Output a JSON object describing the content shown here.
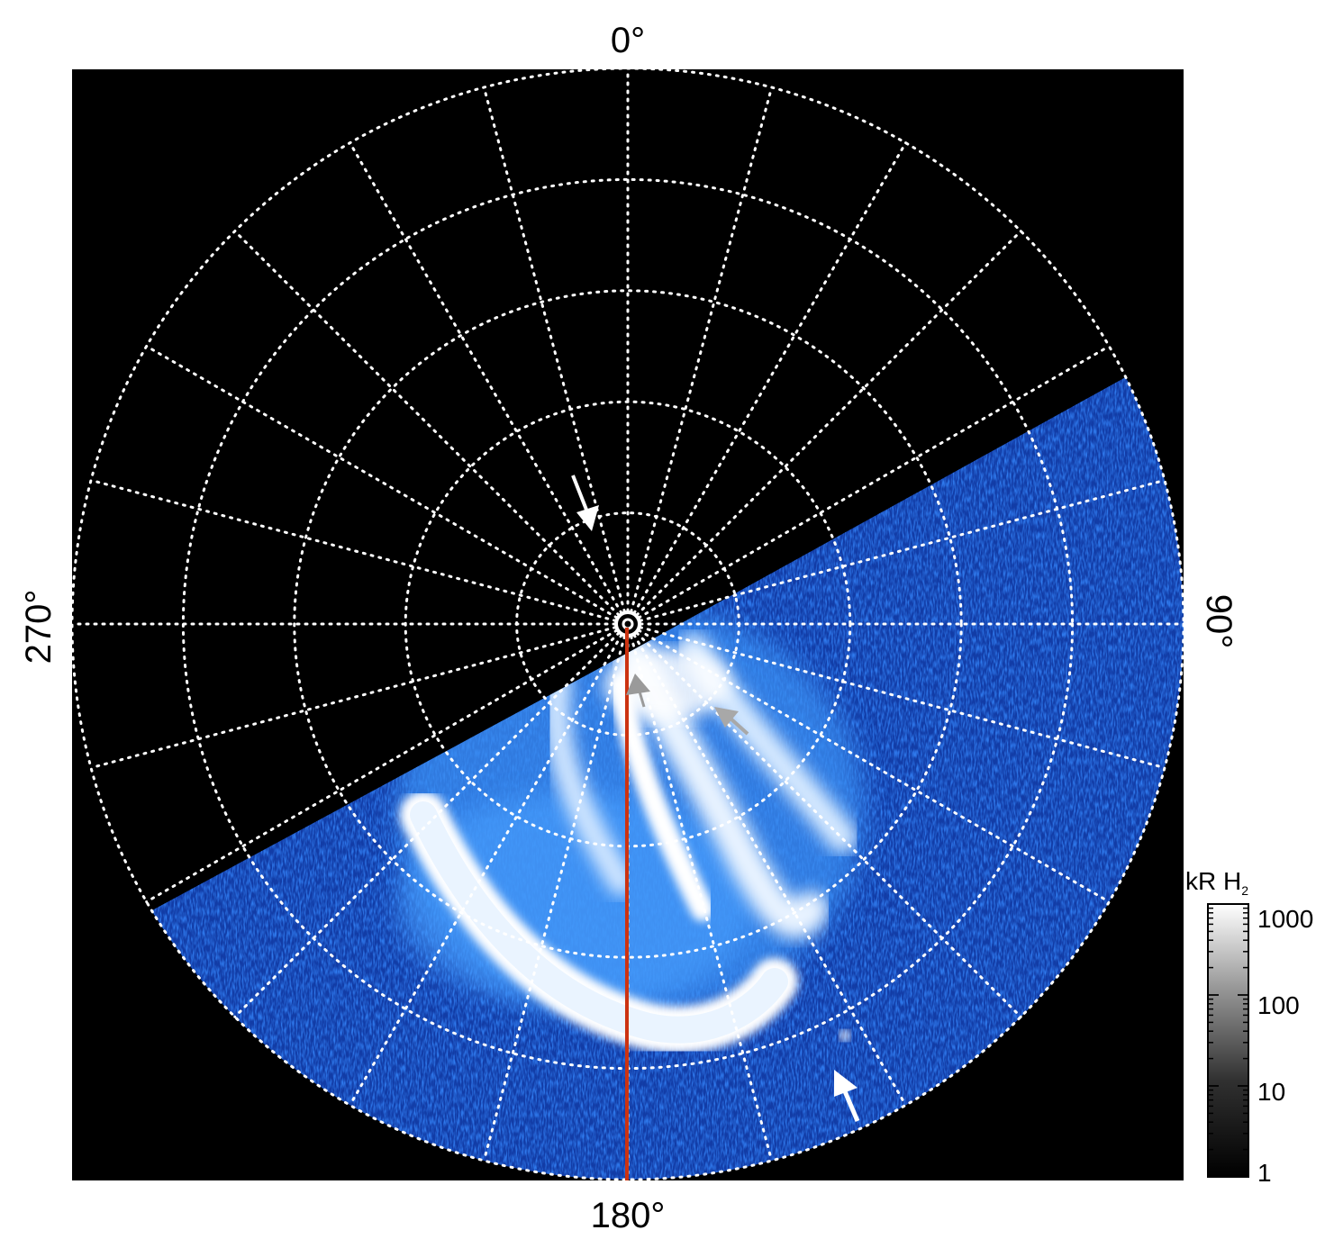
{
  "figure": {
    "azimuth_labels": {
      "top": "0°",
      "right": "90°",
      "bottom": "180°",
      "left": "270°"
    },
    "colorbar": {
      "title_main": "kR H",
      "title_sub": "2",
      "scale": "log",
      "ticks": [
        "1",
        "10",
        "100",
        "1000"
      ]
    },
    "colors": {
      "background": "#000000",
      "aurora_bright": "#ffffff",
      "aurora_mid": "#3a86f0",
      "aurora_dim": "#0a2f9a",
      "grid": "#ffffff",
      "meridian_line": "#cc3311",
      "arrow_white": "#ffffff",
      "arrow_gray": "#a0a0a0"
    },
    "grid": {
      "style": "dotted",
      "meridian_count": 24,
      "ring_count": 5
    }
  }
}
